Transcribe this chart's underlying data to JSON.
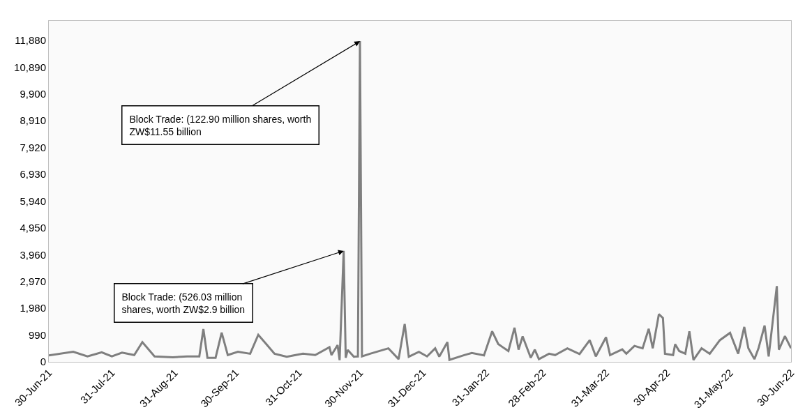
{
  "chart_data": {
    "type": "line",
    "x": [
      "2021-06-30",
      "2021-07-12",
      "2021-07-19",
      "2021-07-26",
      "2021-07-31",
      "2021-08-05",
      "2021-08-11",
      "2021-08-15",
      "2021-08-21",
      "2021-08-30",
      "2021-09-06",
      "2021-09-12",
      "2021-09-14",
      "2021-09-16",
      "2021-09-20",
      "2021-09-23",
      "2021-09-26",
      "2021-10-01",
      "2021-10-07",
      "2021-10-11",
      "2021-10-15",
      "2021-10-19",
      "2021-10-25",
      "2021-11-02",
      "2021-11-08",
      "2021-11-15",
      "2021-11-16",
      "2021-11-19",
      "2021-11-20",
      "2021-11-22",
      "2021-11-23",
      "2021-11-24",
      "2021-11-27",
      "2021-11-29",
      "2021-11-30",
      "2021-12-01",
      "2021-12-05",
      "2021-12-14",
      "2021-12-19",
      "2021-12-22",
      "2021-12-24",
      "2021-12-29",
      "2022-01-02",
      "2022-01-06",
      "2022-01-08",
      "2022-01-12",
      "2022-01-13",
      "2022-01-20",
      "2022-01-24",
      "2022-01-30",
      "2022-02-03",
      "2022-02-06",
      "2022-02-09",
      "2022-02-11",
      "2022-02-14",
      "2022-02-16",
      "2022-02-18",
      "2022-02-22",
      "2022-02-24",
      "2022-02-26",
      "2022-03-03",
      "2022-03-06",
      "2022-03-12",
      "2022-03-18",
      "2022-03-23",
      "2022-03-26",
      "2022-03-31",
      "2022-04-02",
      "2022-04-08",
      "2022-04-10",
      "2022-04-14",
      "2022-04-18",
      "2022-04-21",
      "2022-04-23",
      "2022-04-26",
      "2022-04-28",
      "2022-04-29",
      "2022-05-03",
      "2022-05-04",
      "2022-05-06",
      "2022-05-09",
      "2022-05-11",
      "2022-05-13",
      "2022-05-17",
      "2022-05-21",
      "2022-05-26",
      "2022-05-31",
      "2022-06-04",
      "2022-06-07",
      "2022-06-09",
      "2022-06-12",
      "2022-06-14",
      "2022-06-17",
      "2022-06-19",
      "2022-06-23",
      "2022-06-24",
      "2022-06-27",
      "2022-06-30"
    ],
    "series": [
      {
        "color": "#7f7f7f",
        "values": [
          240,
          370,
          200,
          350,
          200,
          340,
          250,
          730,
          200,
          170,
          200,
          200,
          1210,
          150,
          150,
          1080,
          250,
          370,
          300,
          1000,
          650,
          300,
          190,
          300,
          250,
          540,
          250,
          620,
          60,
          4100,
          150,
          440,
          190,
          200,
          11850,
          200,
          300,
          500,
          100,
          1400,
          190,
          370,
          200,
          500,
          190,
          730,
          70,
          240,
          330,
          240,
          1130,
          660,
          500,
          400,
          1260,
          450,
          940,
          150,
          450,
          100,
          300,
          250,
          500,
          290,
          800,
          200,
          910,
          250,
          460,
          300,
          590,
          500,
          1220,
          500,
          1760,
          1620,
          300,
          250,
          650,
          400,
          300,
          1130,
          70,
          500,
          300,
          800,
          1070,
          300,
          1290,
          500,
          100,
          500,
          1340,
          200,
          2800,
          450,
          950,
          500
        ]
      }
    ],
    "xlim": [
      "2021-06-30",
      "2022-06-30"
    ],
    "xticks": [
      {
        "value": "2021-06-30",
        "label": "30-Jun-21"
      },
      {
        "value": "2021-07-31",
        "label": "31-Jul-21"
      },
      {
        "value": "2021-08-31",
        "label": "31-Aug-21"
      },
      {
        "value": "2021-09-30",
        "label": "30-Sep-21"
      },
      {
        "value": "2021-10-31",
        "label": "31-Oct-21"
      },
      {
        "value": "2021-11-30",
        "label": "30-Nov-21"
      },
      {
        "value": "2021-12-31",
        "label": "31-Dec-21"
      },
      {
        "value": "2022-01-31",
        "label": "31-Jan-22"
      },
      {
        "value": "2022-02-28",
        "label": "28-Feb-22"
      },
      {
        "value": "2022-03-31",
        "label": "31-Mar-22"
      },
      {
        "value": "2022-04-30",
        "label": "30-Apr-22"
      },
      {
        "value": "2022-05-31",
        "label": "31-May-22"
      },
      {
        "value": "2022-06-30",
        "label": "30-Jun-22"
      }
    ],
    "ylim": [
      0,
      12600
    ],
    "yticks": [
      0,
      990,
      {
        "value": 1980,
        "label": "1,980"
      },
      {
        "value": 2970,
        "label": "2,970"
      },
      {
        "value": 3960,
        "label": "3,960"
      },
      {
        "value": 4950,
        "label": "4,950"
      },
      {
        "value": 5940,
        "label": "5,940"
      },
      {
        "value": 6930,
        "label": "6,930"
      },
      {
        "value": 7920,
        "label": "7,920"
      },
      {
        "value": 8910,
        "label": "8,910"
      },
      {
        "value": 9900,
        "label": "9,900"
      },
      {
        "value": 10890,
        "label": "10,890"
      },
      {
        "value": 11880,
        "label": "11,880"
      }
    ],
    "annotations": [
      {
        "text": "Block Trade: (122.90 million shares, worth ZW$11.55 billion",
        "x": "2021-11-30",
        "y": 11850
      },
      {
        "text": "Block Trade: (526.03 million shares, worth ZW$2.9 billion",
        "x": "2021-11-22",
        "y": 4100
      }
    ],
    "grid": false,
    "legend": false,
    "marker": "none",
    "line_style": "solid"
  }
}
